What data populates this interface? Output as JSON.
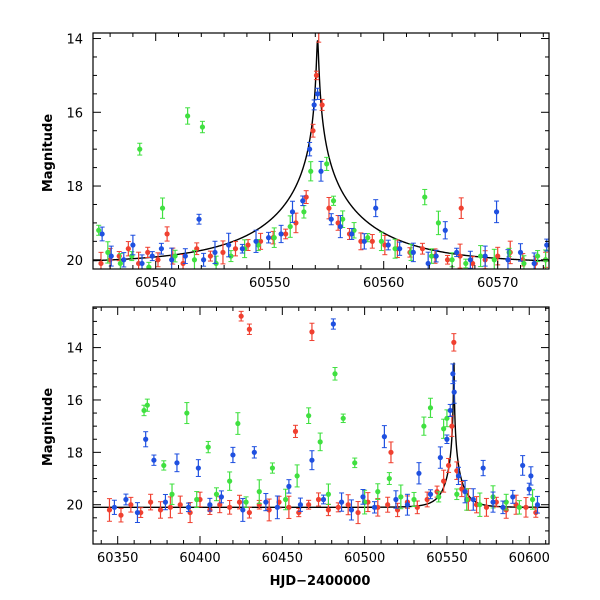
{
  "colors": {
    "red": "#f04030",
    "green": "#40e040",
    "blue": "#1f50e0",
    "model": "#000000"
  },
  "chart_data": [
    {
      "type": "scatter",
      "title": "",
      "xlabel": "",
      "ylabel": "Magnitude",
      "xlim": [
        60534.5,
        60574.5
      ],
      "ylim": [
        20.25,
        13.85
      ],
      "y_inverted": true,
      "xticks": [
        60540,
        60550,
        60560,
        60570
      ],
      "yticks": [
        14,
        16,
        18,
        20
      ],
      "model": {
        "peak_x": 60554.2,
        "peak_mag": 14.05,
        "base_mag": 20.1,
        "u0": 0.008,
        "tE": 10
      },
      "series": [
        {
          "color_key": "red",
          "x": [
            60535.2,
            60536.0,
            60536.8,
            60537.6,
            60538.5,
            60539.3,
            60540.2,
            60541.5,
            60542.4,
            60543.6,
            60544.8,
            60545.9,
            60547.0,
            60548.1,
            60549.2,
            60550.3,
            60551.4,
            60552.3,
            60553.2,
            60553.8,
            60554.1,
            60554.3,
            60554.6,
            60555.2,
            60556.0,
            60557.0,
            60558.0,
            60559.0,
            60560.1,
            60561.2,
            60562.3,
            60563.4,
            60564.5,
            60565.6,
            60566.7,
            60567.8,
            60568.9,
            60570.0,
            60571.1,
            60572.2,
            60573.3,
            60574.2,
            60541.0,
            60566.8
          ],
          "y": [
            20.1,
            20.0,
            19.9,
            19.7,
            20.1,
            19.8,
            20.0,
            19.9,
            20.1,
            19.7,
            19.9,
            19.8,
            19.7,
            19.6,
            19.5,
            19.4,
            19.3,
            19.0,
            18.3,
            16.5,
            15.0,
            13.8,
            15.8,
            18.6,
            19.0,
            19.3,
            19.5,
            19.5,
            19.6,
            19.7,
            19.8,
            19.7,
            19.9,
            20.0,
            19.9,
            20.1,
            20.0,
            19.9,
            19.8,
            20.0,
            20.1,
            20.0,
            19.3,
            18.6
          ]
        },
        {
          "color_key": "green",
          "x": [
            60535.0,
            60535.8,
            60536.9,
            60537.9,
            60538.6,
            60539.4,
            60540.6,
            60541.7,
            60542.8,
            60543.4,
            60544.1,
            60545.3,
            60546.6,
            60547.8,
            60549.0,
            60550.4,
            60551.8,
            60553.0,
            60553.6,
            60555.0,
            60555.6,
            60556.4,
            60557.4,
            60558.6,
            60559.8,
            60561.0,
            60562.4,
            60563.6,
            60564.2,
            60564.8,
            60566.0,
            60567.2,
            60568.5,
            60569.7,
            60571.0,
            60572.3,
            60573.5,
            60574.2
          ],
          "y": [
            19.2,
            19.8,
            20.1,
            19.9,
            17.0,
            20.2,
            18.6,
            19.9,
            16.1,
            20.0,
            16.4,
            20.1,
            19.9,
            19.7,
            19.6,
            19.4,
            19.1,
            18.7,
            17.6,
            17.4,
            18.4,
            18.9,
            19.2,
            19.4,
            19.5,
            19.7,
            19.8,
            18.3,
            19.9,
            19.0,
            20.0,
            20.1,
            19.9,
            20.0,
            19.8,
            20.1,
            19.9,
            20.0
          ]
        },
        {
          "color_key": "blue",
          "x": [
            60535.3,
            60536.1,
            60537.2,
            60538.0,
            60538.8,
            60539.7,
            60540.5,
            60541.4,
            60542.6,
            60543.8,
            60544.2,
            60545.2,
            60546.4,
            60547.6,
            60548.8,
            60549.9,
            60551.0,
            60552.0,
            60552.9,
            60553.5,
            60553.9,
            60554.2,
            60554.5,
            60555.4,
            60556.2,
            60557.2,
            60558.3,
            60559.3,
            60560.4,
            60561.4,
            60562.6,
            60563.9,
            60564.6,
            60565.4,
            60566.4,
            60567.6,
            60568.9,
            60569.9,
            60570.9,
            60572.0,
            60573.2,
            60574.3
          ],
          "y": [
            19.3,
            19.9,
            20.0,
            19.6,
            20.1,
            19.9,
            19.7,
            20.0,
            19.9,
            18.9,
            20.0,
            19.8,
            19.6,
            19.7,
            19.5,
            19.4,
            19.3,
            18.7,
            18.4,
            17.0,
            15.8,
            15.5,
            17.6,
            18.9,
            19.1,
            19.3,
            19.5,
            18.6,
            19.6,
            19.7,
            19.8,
            20.1,
            19.9,
            19.2,
            19.8,
            20.0,
            19.9,
            18.7,
            20.0,
            19.8,
            20.1,
            19.6
          ]
        }
      ]
    },
    {
      "type": "scatter",
      "title": "",
      "xlabel": "HJD−2400000",
      "ylabel": "Magnitude",
      "xlim": [
        60335,
        60612
      ],
      "ylim": [
        21.5,
        12.45
      ],
      "y_inverted": true,
      "xticks": [
        60350,
        60400,
        60450,
        60500,
        60550,
        60600
      ],
      "yticks": [
        14,
        16,
        18,
        20
      ],
      "model": {
        "peak_x": 60554.2,
        "peak_mag": 14.05,
        "base_mag": 20.1,
        "u0": 0.008,
        "tE": 10
      },
      "series": [
        {
          "color_key": "red",
          "x": [
            60345,
            60352,
            60358,
            60364,
            60370,
            60376,
            60382,
            60388,
            60394,
            60400,
            60406,
            60412,
            60418,
            60424,
            60430,
            60436,
            60442,
            60448,
            60454,
            60460,
            60466,
            60472,
            60478,
            60484,
            60490,
            60496,
            60502,
            60508,
            60514,
            60520,
            60526,
            60532,
            60538,
            60544,
            60548,
            60551,
            60553,
            60554.2,
            60556,
            60559,
            60563,
            60568,
            60574,
            60580,
            60586,
            60592,
            60598,
            60604,
            60425,
            60430,
            60468,
            60458,
            60516
          ],
          "y": [
            20.2,
            20.4,
            20.0,
            20.3,
            19.9,
            20.2,
            20.1,
            20.0,
            20.3,
            19.8,
            20.2,
            20.0,
            20.1,
            19.9,
            20.3,
            20.0,
            20.2,
            19.9,
            20.1,
            20.3,
            20.0,
            19.8,
            20.2,
            20.1,
            20.0,
            20.3,
            19.9,
            20.1,
            20.0,
            20.2,
            19.9,
            20.1,
            19.8,
            19.5,
            19.1,
            18.5,
            17.0,
            13.8,
            18.7,
            19.4,
            19.8,
            20.0,
            20.1,
            19.9,
            20.2,
            20.0,
            20.1,
            20.3,
            12.8,
            13.3,
            13.4,
            17.2,
            18.0
          ]
        },
        {
          "color_key": "green",
          "x": [
            60366,
            60368,
            60378,
            60383,
            60392,
            60398,
            60405,
            60410,
            60418,
            60423,
            60428,
            60436,
            60444,
            60452,
            60459,
            60466,
            60473,
            60478,
            60482,
            60487,
            60494,
            60500,
            60508,
            60515,
            60522,
            60530,
            60536,
            60540,
            60545,
            60548,
            60550,
            60556,
            60562,
            60570,
            60578,
            60586,
            60594,
            60602
          ],
          "y": [
            16.4,
            16.2,
            18.5,
            19.6,
            16.5,
            19.8,
            17.8,
            19.6,
            19.1,
            16.9,
            19.9,
            19.5,
            18.6,
            19.8,
            18.9,
            16.6,
            17.6,
            19.6,
            15.0,
            16.7,
            18.4,
            19.9,
            19.5,
            19.0,
            19.7,
            19.8,
            17.0,
            16.3,
            19.7,
            17.1,
            16.7,
            19.6,
            19.8,
            20.0,
            19.7,
            19.9,
            20.1,
            19.8
          ]
        },
        {
          "color_key": "blue",
          "x": [
            60348,
            60355,
            60362,
            60367,
            60372,
            60379,
            60386,
            60393,
            60399,
            60406,
            60413,
            60420,
            60426,
            60433,
            60440,
            60447,
            60454,
            60461,
            60468,
            60475,
            60481,
            60486,
            60492,
            60499,
            60506,
            60512,
            60519,
            60526,
            60533,
            60540,
            60546,
            60550,
            60552,
            60553.6,
            60554.4,
            60557,
            60561,
            60566,
            60572,
            60578,
            60584,
            60590,
            60596,
            60601,
            60605,
            60600
          ],
          "y": [
            20.1,
            19.8,
            20.3,
            17.5,
            18.3,
            19.9,
            18.4,
            20.1,
            18.6,
            20.0,
            19.7,
            18.1,
            20.2,
            18.0,
            19.9,
            20.1,
            19.3,
            20.0,
            18.3,
            19.8,
            13.1,
            19.9,
            20.2,
            19.7,
            20.1,
            17.4,
            19.8,
            20.0,
            18.8,
            19.6,
            18.2,
            17.5,
            16.4,
            15.0,
            15.7,
            18.9,
            19.5,
            19.8,
            18.6,
            19.9,
            20.1,
            19.7,
            18.5,
            18.9,
            20.0,
            19.4
          ]
        }
      ]
    }
  ]
}
